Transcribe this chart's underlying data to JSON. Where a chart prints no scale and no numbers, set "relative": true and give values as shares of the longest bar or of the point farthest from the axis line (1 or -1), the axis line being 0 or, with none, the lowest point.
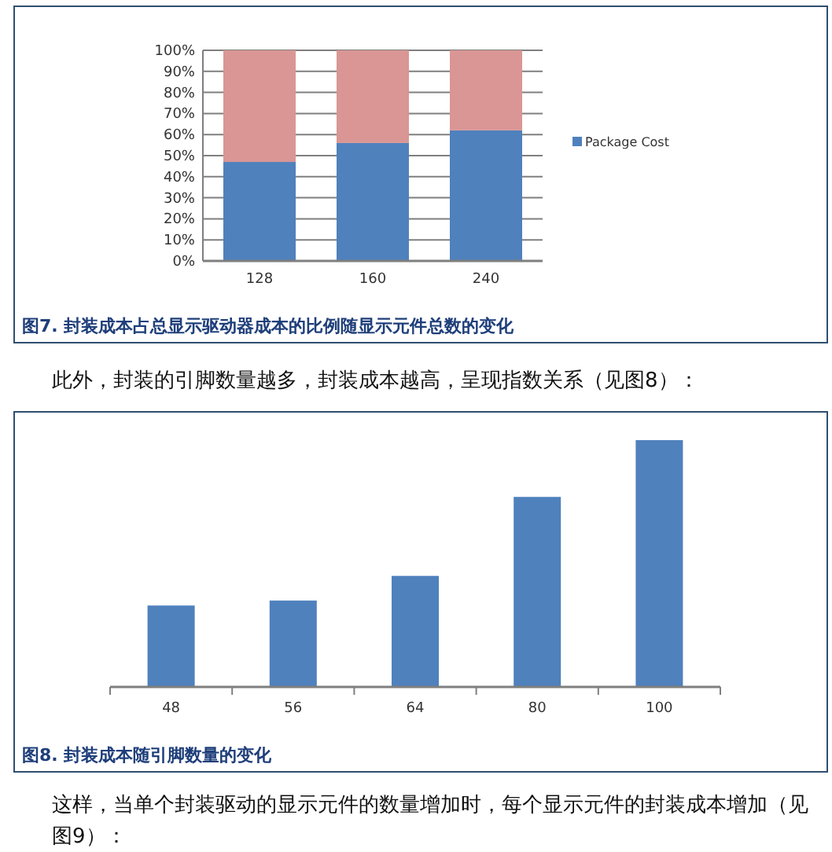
{
  "chart_data": [
    {
      "type": "bar",
      "title": "图7.   封装成本占总显示驱动器成本的比例随显示元件总数的变化",
      "categories": [
        "128",
        "160",
        "240"
      ],
      "stacked": true,
      "series": [
        {
          "name": "Package Cost",
          "color": "#4f81bd",
          "values": [
            47,
            56,
            62
          ]
        },
        {
          "color": "#d99694",
          "values": [
            53,
            44,
            38
          ]
        }
      ],
      "ylim": [
        0,
        100
      ],
      "yticks": [
        {
          "value": 0,
          "label": "0%"
        },
        {
          "value": 10,
          "label": "10%"
        },
        {
          "value": 20,
          "label": "20%"
        },
        {
          "value": 30,
          "label": "30%"
        },
        {
          "value": 40,
          "label": "40%"
        },
        {
          "value": 50,
          "label": "50%"
        },
        {
          "value": 60,
          "label": "60%"
        },
        {
          "value": 70,
          "label": "70%"
        },
        {
          "value": 80,
          "label": "80%"
        },
        {
          "value": 90,
          "label": "90%"
        },
        {
          "value": 100,
          "label": "100%"
        }
      ],
      "grid": "y",
      "legend": "right"
    },
    {
      "type": "bar",
      "title": "图8.   封装成本随引脚数量的变化",
      "categories": [
        "48",
        "56",
        "64",
        "80",
        "100"
      ],
      "relative": true,
      "series": [
        {
          "color": "#4f81bd",
          "values": [
            0.33,
            0.35,
            0.45,
            0.77,
            1
          ]
        }
      ],
      "annotations": [
        "此外，封装的引脚数量越多，封装成本越高，呈现指数关系（见图8）：",
        "这样，当单个封装驱动的显示元件的数量增加时，每个显示元件的封装成本增加（见图9）："
      ]
    }
  ]
}
